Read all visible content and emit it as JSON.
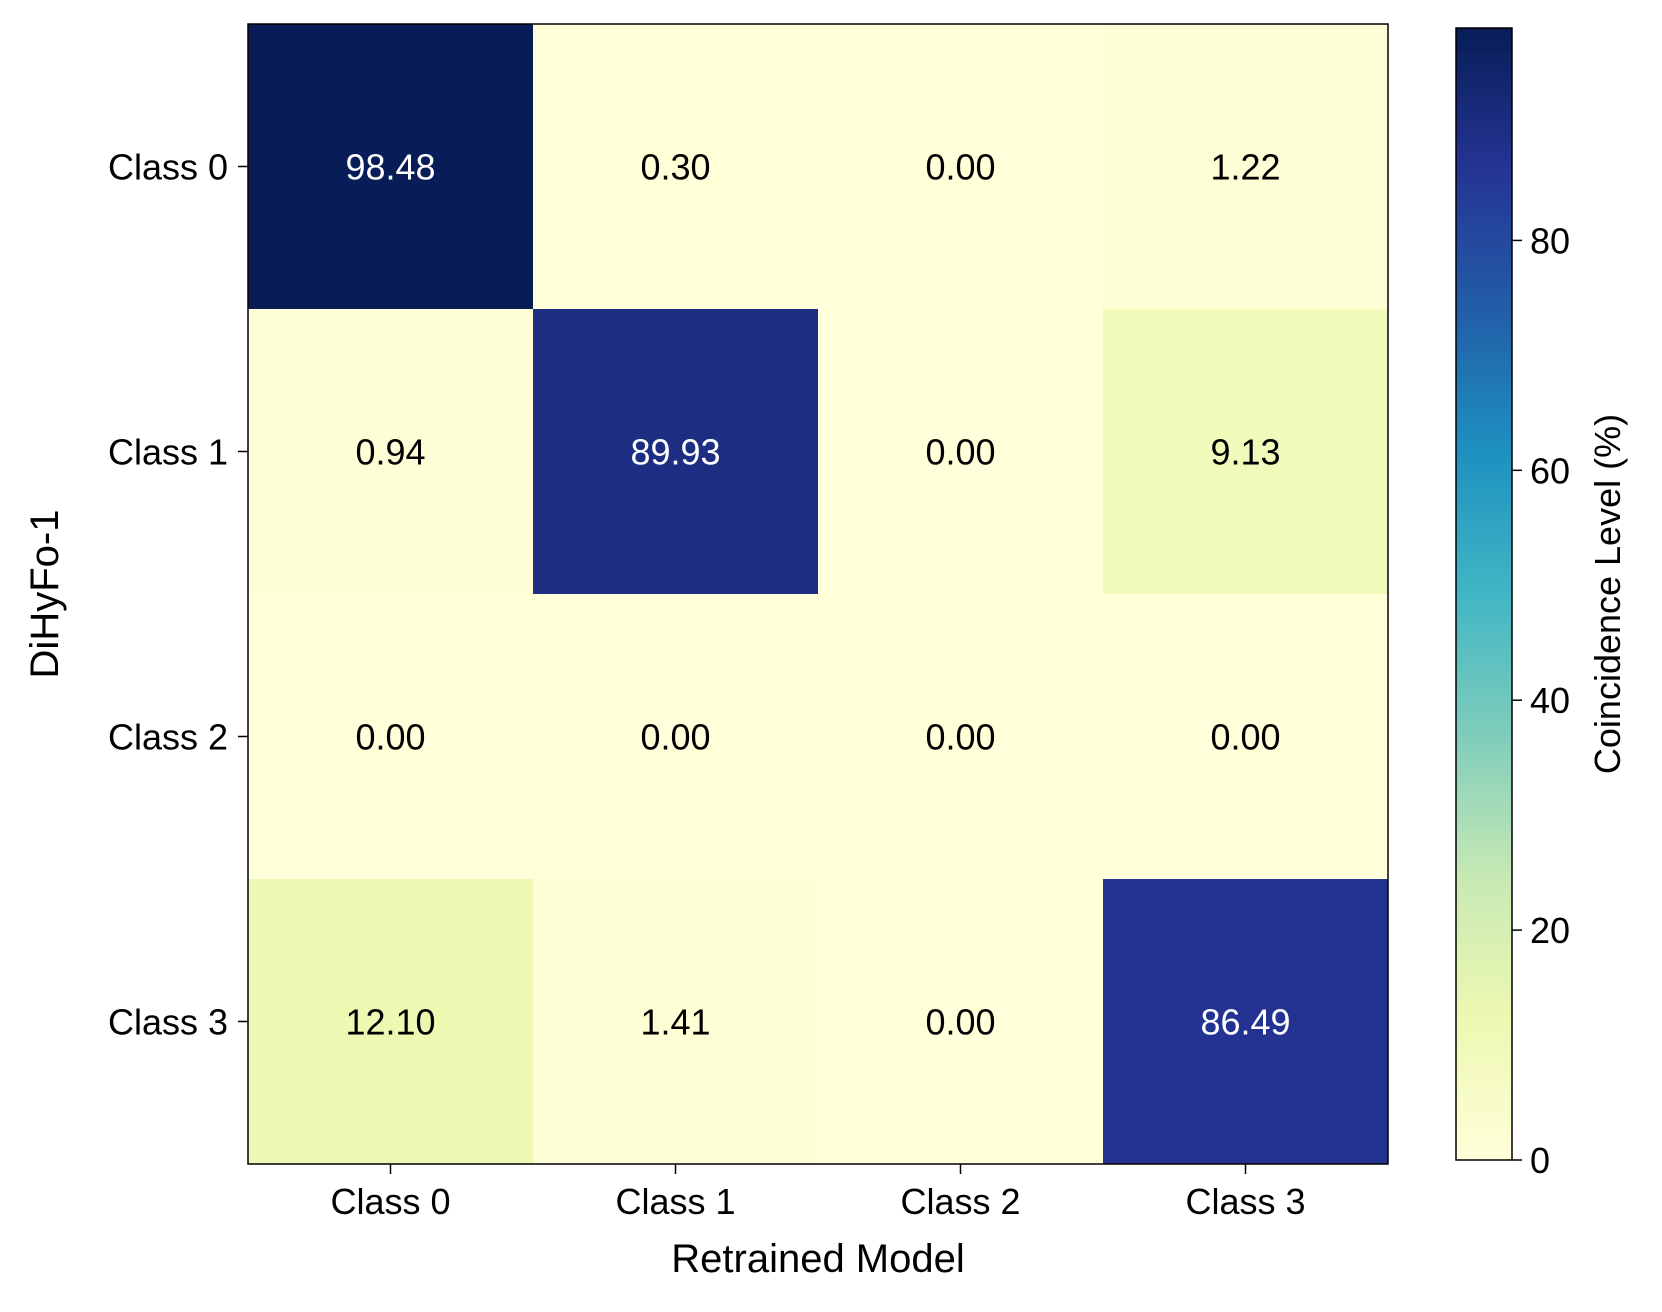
{
  "chart_data": {
    "type": "heatmap",
    "title": "",
    "xlabel": "Retrained Model",
    "ylabel": "DiHyFo-1",
    "x_categories": [
      "Class 0",
      "Class 1",
      "Class 2",
      "Class 3"
    ],
    "y_categories": [
      "Class 0",
      "Class 1",
      "Class 2",
      "Class 3"
    ],
    "values": [
      [
        98.48,
        0.3,
        0.0,
        1.22
      ],
      [
        0.94,
        89.93,
        0.0,
        9.13
      ],
      [
        0.0,
        0.0,
        0.0,
        0.0
      ],
      [
        12.1,
        1.41,
        0.0,
        86.49
      ]
    ],
    "value_labels": [
      [
        "98.48",
        "0.30",
        "0.00",
        "1.22"
      ],
      [
        "0.94",
        "89.93",
        "0.00",
        "9.13"
      ],
      [
        "0.00",
        "0.00",
        "0.00",
        "0.00"
      ],
      [
        "12.10",
        "1.41",
        "0.00",
        "86.49"
      ]
    ],
    "colorbar": {
      "label": "Coincidence Level (%)",
      "range": [
        0,
        98.48
      ],
      "ticks": [
        0,
        20,
        40,
        60,
        80
      ],
      "tick_labels": [
        "0",
        "20",
        "40",
        "60",
        "80"
      ],
      "colormap": "YlGnBu"
    },
    "grid": false,
    "legend": "none"
  }
}
